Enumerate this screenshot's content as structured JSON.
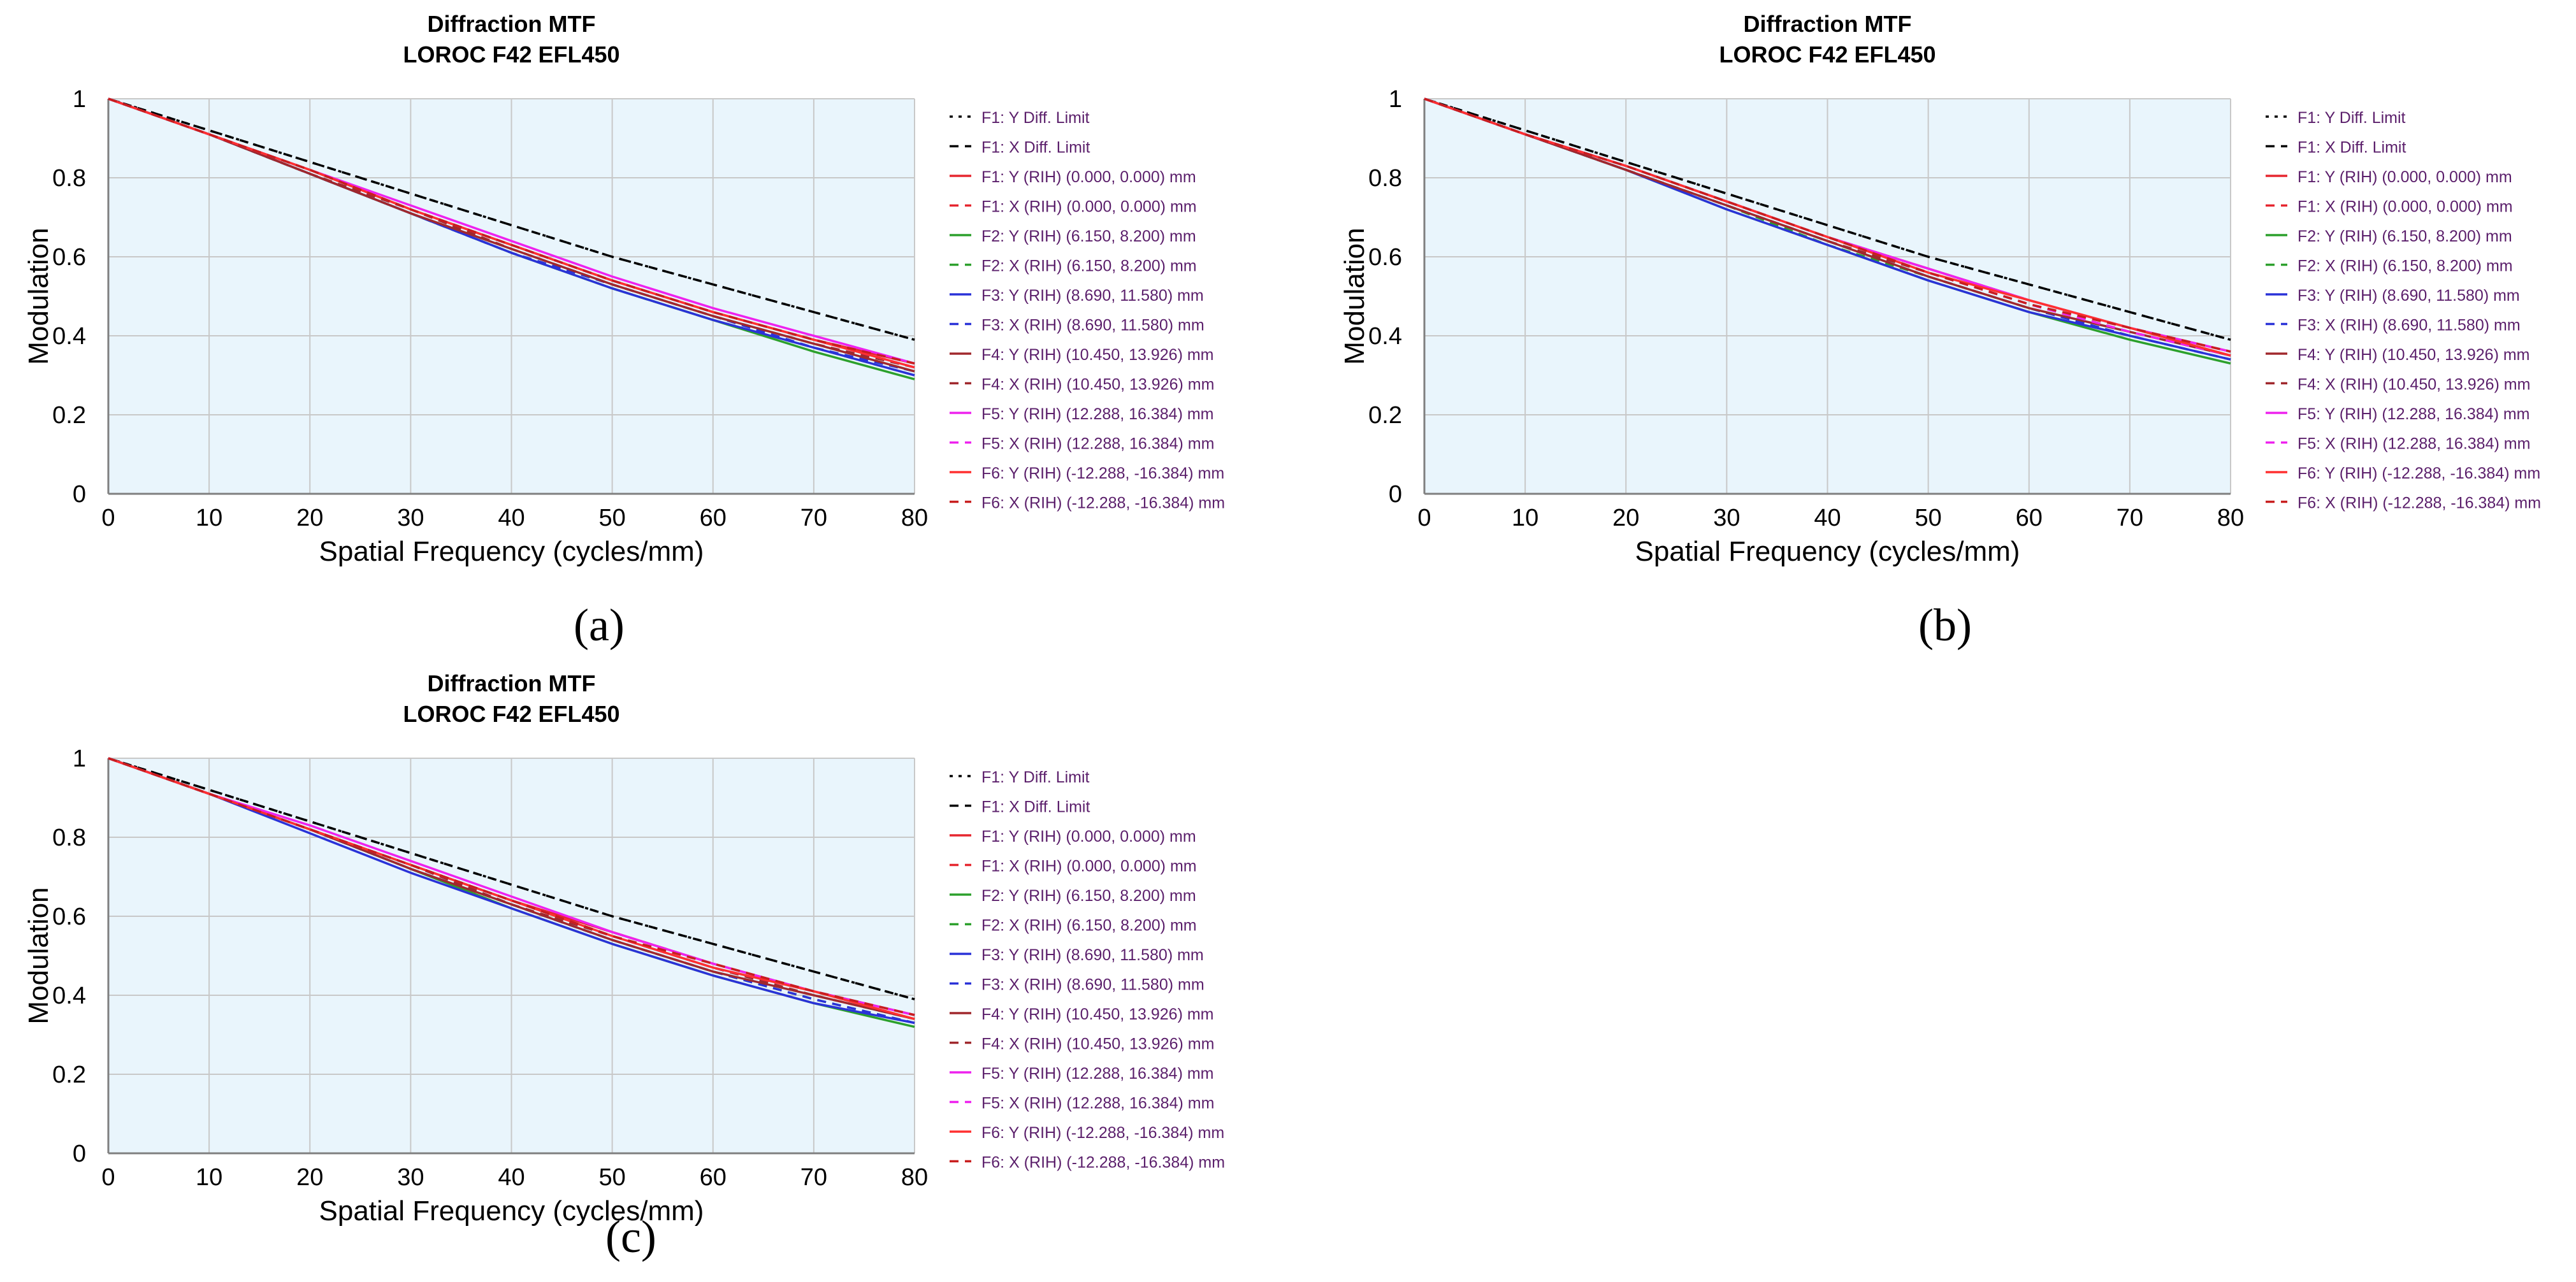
{
  "panel_labels": [
    "(a)",
    "(b)",
    "(c)"
  ],
  "chart_data": [
    {
      "type": "line",
      "title": "Diffraction MTF",
      "subtitle": "LOROC F42 EFL450",
      "xlabel": "Spatial Frequency (cycles/mm)",
      "ylabel": "Modulation",
      "xlim": [
        0,
        80
      ],
      "ylim": [
        0,
        1
      ],
      "xticks": [
        0,
        10,
        20,
        30,
        40,
        50,
        60,
        70,
        80
      ],
      "yticks": [
        0,
        0.2,
        0.4,
        0.6,
        0.8,
        1
      ],
      "grid": true,
      "legend": "right",
      "x": [
        0,
        10,
        20,
        30,
        40,
        50,
        60,
        70,
        80
      ],
      "series": [
        {
          "name": "F1: Y Diff. Limit",
          "color": "#000000",
          "dash": "dot",
          "values": [
            1.0,
            0.92,
            0.84,
            0.76,
            0.68,
            0.6,
            0.53,
            0.46,
            0.39
          ]
        },
        {
          "name": "F1: X Diff. Limit",
          "color": "#000000",
          "dash": "dash",
          "values": [
            1.0,
            0.92,
            0.84,
            0.76,
            0.68,
            0.6,
            0.53,
            0.46,
            0.39
          ]
        },
        {
          "name": "F1: Y (RIH) (0.000, 0.000) mm",
          "color": "#e6262f",
          "dash": "solid",
          "values": [
            1.0,
            0.91,
            0.82,
            0.72,
            0.63,
            0.54,
            0.46,
            0.39,
            0.33
          ]
        },
        {
          "name": "F1: X (RIH) (0.000, 0.000) mm",
          "color": "#e6262f",
          "dash": "dash",
          "values": [
            1.0,
            0.91,
            0.82,
            0.72,
            0.63,
            0.54,
            0.46,
            0.39,
            0.33
          ]
        },
        {
          "name": "F2: Y (RIH) (6.150, 8.200) mm",
          "color": "#2ca02c",
          "dash": "solid",
          "values": [
            1.0,
            0.91,
            0.81,
            0.71,
            0.61,
            0.52,
            0.44,
            0.36,
            0.29
          ]
        },
        {
          "name": "F2: X (RIH) (6.150, 8.200) mm",
          "color": "#2ca02c",
          "dash": "dash",
          "values": [
            1.0,
            0.91,
            0.81,
            0.71,
            0.61,
            0.52,
            0.44,
            0.37,
            0.3
          ]
        },
        {
          "name": "F3: Y (RIH) (8.690, 11.580) mm",
          "color": "#2a32d8",
          "dash": "solid",
          "values": [
            1.0,
            0.91,
            0.81,
            0.71,
            0.61,
            0.52,
            0.44,
            0.37,
            0.3
          ]
        },
        {
          "name": "F3: X (RIH) (8.690, 11.580) mm",
          "color": "#2a32d8",
          "dash": "dash",
          "values": [
            1.0,
            0.91,
            0.81,
            0.71,
            0.61,
            0.53,
            0.45,
            0.37,
            0.31
          ]
        },
        {
          "name": "F4: Y (RIH) (10.450, 13.926) mm",
          "color": "#a0282d",
          "dash": "solid",
          "values": [
            1.0,
            0.91,
            0.81,
            0.71,
            0.62,
            0.53,
            0.45,
            0.38,
            0.31
          ]
        },
        {
          "name": "F4: X (RIH) (10.450, 13.926) mm",
          "color": "#a0282d",
          "dash": "dash",
          "values": [
            1.0,
            0.91,
            0.81,
            0.72,
            0.62,
            0.53,
            0.45,
            0.38,
            0.32
          ]
        },
        {
          "name": "F5: Y (RIH) (12.288, 16.384) mm",
          "color": "#ee22ee",
          "dash": "solid",
          "values": [
            1.0,
            0.91,
            0.82,
            0.73,
            0.64,
            0.55,
            0.47,
            0.4,
            0.33
          ]
        },
        {
          "name": "F5: X (RIH) (12.288, 16.384) mm",
          "color": "#ee22ee",
          "dash": "dash",
          "values": [
            1.0,
            0.91,
            0.82,
            0.72,
            0.63,
            0.54,
            0.46,
            0.39,
            0.32
          ]
        },
        {
          "name": "F6: Y (RIH) (-12.288, -16.384) mm",
          "color": "#ff3030",
          "dash": "solid",
          "values": [
            1.0,
            0.91,
            0.82,
            0.72,
            0.63,
            0.54,
            0.46,
            0.39,
            0.32
          ]
        },
        {
          "name": "F6: X (RIH) (-12.288, -16.384) mm",
          "color": "#c81e1e",
          "dash": "dash",
          "values": [
            1.0,
            0.91,
            0.82,
            0.72,
            0.63,
            0.54,
            0.46,
            0.39,
            0.33
          ]
        }
      ]
    },
    {
      "type": "line",
      "title": "Diffraction MTF",
      "subtitle": "LOROC F42 EFL450",
      "xlabel": "Spatial Frequency (cycles/mm)",
      "ylabel": "Modulation",
      "xlim": [
        0,
        80
      ],
      "ylim": [
        0,
        1
      ],
      "xticks": [
        0,
        10,
        20,
        30,
        40,
        50,
        60,
        70,
        80
      ],
      "yticks": [
        0,
        0.2,
        0.4,
        0.6,
        0.8,
        1
      ],
      "grid": true,
      "legend": "right",
      "x": [
        0,
        10,
        20,
        30,
        40,
        50,
        60,
        70,
        80
      ],
      "series": [
        {
          "name": "F1: Y Diff. Limit",
          "color": "#000000",
          "dash": "dot",
          "values": [
            1.0,
            0.92,
            0.84,
            0.76,
            0.68,
            0.6,
            0.53,
            0.46,
            0.39
          ]
        },
        {
          "name": "F1: X Diff. Limit",
          "color": "#000000",
          "dash": "dash",
          "values": [
            1.0,
            0.92,
            0.84,
            0.76,
            0.68,
            0.6,
            0.53,
            0.46,
            0.39
          ]
        },
        {
          "name": "F1: Y (RIH) (0.000, 0.000) mm",
          "color": "#e6262f",
          "dash": "solid",
          "values": [
            1.0,
            0.91,
            0.83,
            0.74,
            0.65,
            0.57,
            0.49,
            0.42,
            0.36
          ]
        },
        {
          "name": "F1: X (RIH) (0.000, 0.000) mm",
          "color": "#e6262f",
          "dash": "dash",
          "values": [
            1.0,
            0.91,
            0.83,
            0.74,
            0.65,
            0.57,
            0.49,
            0.42,
            0.36
          ]
        },
        {
          "name": "F2: Y (RIH) (6.150, 8.200) mm",
          "color": "#2ca02c",
          "dash": "solid",
          "values": [
            1.0,
            0.91,
            0.82,
            0.72,
            0.63,
            0.54,
            0.46,
            0.39,
            0.33
          ]
        },
        {
          "name": "F2: X (RIH) (6.150, 8.200) mm",
          "color": "#2ca02c",
          "dash": "dash",
          "values": [
            1.0,
            0.91,
            0.82,
            0.73,
            0.63,
            0.55,
            0.47,
            0.4,
            0.34
          ]
        },
        {
          "name": "F3: Y (RIH) (8.690, 11.580) mm",
          "color": "#2a32d8",
          "dash": "solid",
          "values": [
            1.0,
            0.91,
            0.82,
            0.72,
            0.63,
            0.54,
            0.46,
            0.4,
            0.34
          ]
        },
        {
          "name": "F3: X (RIH) (8.690, 11.580) mm",
          "color": "#2a32d8",
          "dash": "dash",
          "values": [
            1.0,
            0.91,
            0.82,
            0.73,
            0.64,
            0.55,
            0.47,
            0.4,
            0.34
          ]
        },
        {
          "name": "F4: Y (RIH) (10.450, 13.926) mm",
          "color": "#a0282d",
          "dash": "solid",
          "values": [
            1.0,
            0.91,
            0.82,
            0.73,
            0.64,
            0.55,
            0.47,
            0.41,
            0.35
          ]
        },
        {
          "name": "F4: X (RIH) (10.450, 13.926) mm",
          "color": "#a0282d",
          "dash": "dash",
          "values": [
            1.0,
            0.91,
            0.82,
            0.73,
            0.64,
            0.56,
            0.48,
            0.41,
            0.35
          ]
        },
        {
          "name": "F5: Y (RIH) (12.288, 16.384) mm",
          "color": "#ee22ee",
          "dash": "solid",
          "values": [
            1.0,
            0.91,
            0.83,
            0.74,
            0.65,
            0.57,
            0.49,
            0.42,
            0.36
          ]
        },
        {
          "name": "F5: X (RIH) (12.288, 16.384) mm",
          "color": "#ee22ee",
          "dash": "dash",
          "values": [
            1.0,
            0.91,
            0.83,
            0.74,
            0.65,
            0.56,
            0.48,
            0.41,
            0.35
          ]
        },
        {
          "name": "F6: Y (RIH) (-12.288, -16.384) mm",
          "color": "#ff3030",
          "dash": "solid",
          "values": [
            1.0,
            0.91,
            0.83,
            0.74,
            0.65,
            0.56,
            0.49,
            0.42,
            0.35
          ]
        },
        {
          "name": "F6: X (RIH) (-12.288, -16.384) mm",
          "color": "#c81e1e",
          "dash": "dash",
          "values": [
            1.0,
            0.91,
            0.83,
            0.74,
            0.65,
            0.56,
            0.48,
            0.42,
            0.36
          ]
        }
      ]
    },
    {
      "type": "line",
      "title": "Diffraction MTF",
      "subtitle": "LOROC F42 EFL450",
      "xlabel": "Spatial Frequency (cycles/mm)",
      "ylabel": "Modulation",
      "xlim": [
        0,
        80
      ],
      "ylim": [
        0,
        1
      ],
      "xticks": [
        0,
        10,
        20,
        30,
        40,
        50,
        60,
        70,
        80
      ],
      "yticks": [
        0,
        0.2,
        0.4,
        0.6,
        0.8,
        1
      ],
      "grid": true,
      "legend": "right",
      "x": [
        0,
        10,
        20,
        30,
        40,
        50,
        60,
        70,
        80
      ],
      "series": [
        {
          "name": "F1: Y Diff. Limit",
          "color": "#000000",
          "dash": "dot",
          "values": [
            1.0,
            0.92,
            0.84,
            0.76,
            0.68,
            0.6,
            0.53,
            0.46,
            0.39
          ]
        },
        {
          "name": "F1: X Diff. Limit",
          "color": "#000000",
          "dash": "dash",
          "values": [
            1.0,
            0.92,
            0.84,
            0.76,
            0.68,
            0.6,
            0.53,
            0.46,
            0.39
          ]
        },
        {
          "name": "F1: Y (RIH) (0.000, 0.000) mm",
          "color": "#e6262f",
          "dash": "solid",
          "values": [
            1.0,
            0.91,
            0.82,
            0.73,
            0.64,
            0.56,
            0.48,
            0.41,
            0.35
          ]
        },
        {
          "name": "F1: X (RIH) (0.000, 0.000) mm",
          "color": "#e6262f",
          "dash": "dash",
          "values": [
            1.0,
            0.91,
            0.82,
            0.73,
            0.64,
            0.56,
            0.48,
            0.41,
            0.35
          ]
        },
        {
          "name": "F2: Y (RIH) (6.150, 8.200) mm",
          "color": "#2ca02c",
          "dash": "solid",
          "values": [
            1.0,
            0.91,
            0.82,
            0.72,
            0.62,
            0.53,
            0.45,
            0.38,
            0.32
          ]
        },
        {
          "name": "F2: X (RIH) (6.150, 8.200) mm",
          "color": "#2ca02c",
          "dash": "dash",
          "values": [
            1.0,
            0.91,
            0.82,
            0.72,
            0.63,
            0.54,
            0.46,
            0.39,
            0.33
          ]
        },
        {
          "name": "F3: Y (RIH) (8.690, 11.580) mm",
          "color": "#2a32d8",
          "dash": "solid",
          "values": [
            1.0,
            0.91,
            0.81,
            0.71,
            0.62,
            0.53,
            0.45,
            0.38,
            0.33
          ]
        },
        {
          "name": "F3: X (RIH) (8.690, 11.580) mm",
          "color": "#2a32d8",
          "dash": "dash",
          "values": [
            1.0,
            0.91,
            0.82,
            0.72,
            0.63,
            0.54,
            0.46,
            0.39,
            0.33
          ]
        },
        {
          "name": "F4: Y (RIH) (10.450, 13.926) mm",
          "color": "#a0282d",
          "dash": "solid",
          "values": [
            1.0,
            0.91,
            0.82,
            0.72,
            0.63,
            0.54,
            0.46,
            0.4,
            0.34
          ]
        },
        {
          "name": "F4: X (RIH) (10.450, 13.926) mm",
          "color": "#a0282d",
          "dash": "dash",
          "values": [
            1.0,
            0.91,
            0.82,
            0.73,
            0.63,
            0.55,
            0.47,
            0.4,
            0.34
          ]
        },
        {
          "name": "F5: Y (RIH) (12.288, 16.384) mm",
          "color": "#ee22ee",
          "dash": "solid",
          "values": [
            1.0,
            0.91,
            0.83,
            0.74,
            0.65,
            0.56,
            0.48,
            0.41,
            0.35
          ]
        },
        {
          "name": "F5: X (RIH) (12.288, 16.384) mm",
          "color": "#ee22ee",
          "dash": "dash",
          "values": [
            1.0,
            0.91,
            0.82,
            0.73,
            0.64,
            0.55,
            0.47,
            0.41,
            0.35
          ]
        },
        {
          "name": "F6: Y (RIH) (-12.288, -16.384) mm",
          "color": "#ff3030",
          "dash": "solid",
          "values": [
            1.0,
            0.91,
            0.82,
            0.73,
            0.64,
            0.55,
            0.47,
            0.41,
            0.34
          ]
        },
        {
          "name": "F6: X (RIH) (-12.288, -16.384) mm",
          "color": "#c81e1e",
          "dash": "dash",
          "values": [
            1.0,
            0.91,
            0.82,
            0.73,
            0.64,
            0.55,
            0.48,
            0.41,
            0.35
          ]
        }
      ]
    }
  ]
}
